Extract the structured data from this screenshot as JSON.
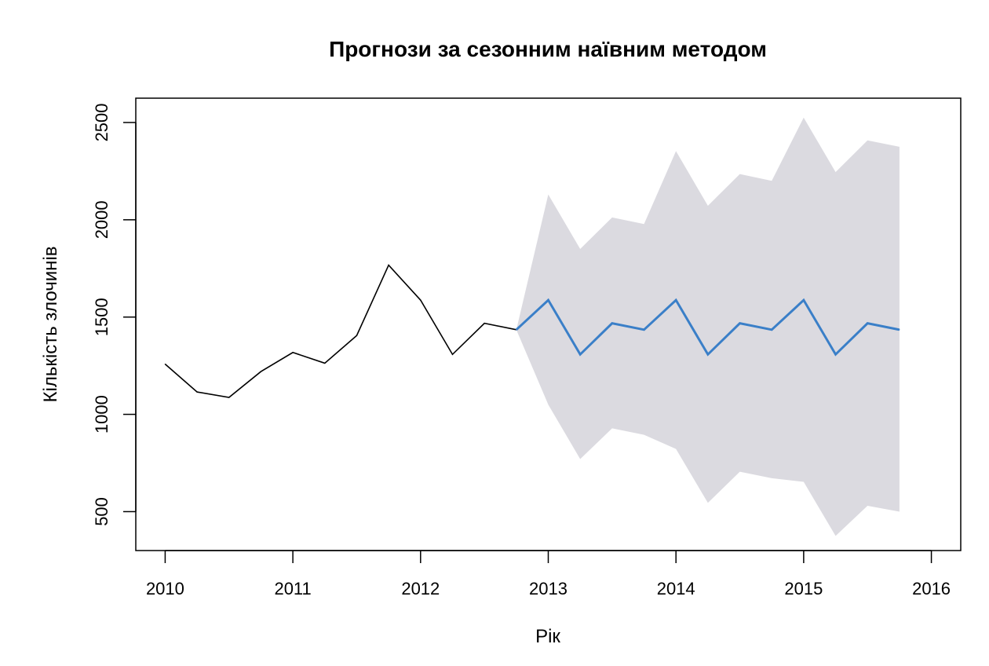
{
  "chart_data": {
    "type": "line",
    "title": "Прогнози за сезонним наївним методом",
    "xlabel": "Рік",
    "ylabel": "Кількість злочинів",
    "xlim": [
      2009.77,
      2016.23
    ],
    "ylim": [
      300,
      2625
    ],
    "x_ticks": [
      "2010",
      "2011",
      "2012",
      "2013",
      "2014",
      "2015",
      "2016"
    ],
    "y_ticks": [
      "500",
      "1000",
      "1500",
      "2000",
      "2500"
    ],
    "grid": false,
    "legend": "none",
    "colors": {
      "observed": "#000000",
      "forecast": "#3a7fc8",
      "interval": "#dbdae0",
      "frame": "#000000"
    },
    "series": [
      {
        "role": "observed",
        "x": [
          2010.0,
          2010.25,
          2010.5,
          2010.75,
          2011.0,
          2011.25,
          2011.5,
          2011.75,
          2012.0,
          2012.25,
          2012.5,
          2012.75
        ],
        "values": [
          1258,
          1115,
          1087,
          1220,
          1318,
          1263,
          1405,
          1767,
          1587,
          1308,
          1468,
          1435
        ]
      },
      {
        "role": "forecast",
        "x": [
          2012.75,
          2013.0,
          2013.25,
          2013.5,
          2013.75,
          2014.0,
          2014.25,
          2014.5,
          2014.75,
          2015.0,
          2015.25,
          2015.5,
          2015.75
        ],
        "values": [
          1435,
          1587,
          1308,
          1468,
          1435,
          1587,
          1308,
          1468,
          1435,
          1587,
          1308,
          1468,
          1435
        ]
      }
    ],
    "interval": {
      "x": [
        2012.75,
        2013.0,
        2013.25,
        2013.5,
        2013.75,
        2014.0,
        2014.25,
        2014.5,
        2014.75,
        2015.0,
        2015.25,
        2015.5,
        2015.75
      ],
      "lower": [
        1435,
        1050,
        770,
        928,
        895,
        822,
        545,
        705,
        672,
        653,
        375,
        530,
        500
      ],
      "upper": [
        1435,
        2130,
        1850,
        2012,
        1978,
        2353,
        2072,
        2235,
        2200,
        2525,
        2245,
        2408,
        2375
      ]
    }
  }
}
